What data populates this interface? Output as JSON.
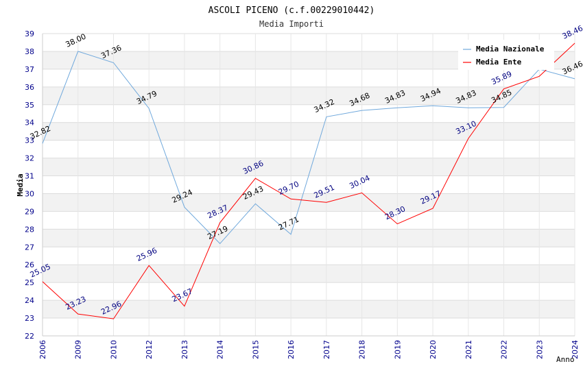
{
  "chart_data": {
    "type": "line",
    "title": "ASCOLI PICENO (c.f.00229010442)",
    "subtitle": "Media Importi",
    "xlabel": "Anno",
    "ylabel": "Media",
    "categories": [
      "2006",
      "2009",
      "2010",
      "2012",
      "2013",
      "2014",
      "2015",
      "2016",
      "2017",
      "2018",
      "2019",
      "2020",
      "2021",
      "2022",
      "2023",
      "2024"
    ],
    "ylim": [
      22,
      39
    ],
    "yticks": [
      22,
      23,
      24,
      25,
      26,
      27,
      28,
      29,
      30,
      31,
      32,
      33,
      34,
      35,
      36,
      37,
      38,
      39
    ],
    "grid": true,
    "legend_position": "top-right",
    "series": [
      {
        "name": "Media Nazionale",
        "color": "#6fa8dc",
        "label_color": "#000000",
        "values": [
          32.82,
          38.0,
          37.36,
          34.79,
          29.24,
          27.19,
          29.43,
          27.71,
          34.32,
          34.68,
          34.83,
          34.94,
          34.83,
          34.85,
          37.0,
          36.46
        ],
        "labels": [
          "32.82",
          "38.00",
          "37.36",
          "34.79",
          "29.24",
          "27.19",
          "29.43",
          "27.71",
          "34.32",
          "34.68",
          "34.83",
          "34.94",
          "34.83",
          "34.85",
          "",
          "36.46"
        ]
      },
      {
        "name": "Media Ente",
        "color": "#ff0000",
        "label_color": "#000080",
        "values": [
          25.05,
          23.23,
          22.96,
          25.96,
          23.67,
          28.37,
          30.86,
          29.7,
          29.51,
          30.04,
          28.3,
          29.17,
          33.1,
          35.89,
          36.6,
          38.46
        ],
        "labels": [
          "25.05",
          "23.23",
          "22.96",
          "25.96",
          "23.67",
          "28.37",
          "30.86",
          "29.70",
          "29.51",
          "30.04",
          "28.30",
          "29.17",
          "33.10",
          "35.89",
          "",
          "38.46"
        ]
      }
    ]
  }
}
